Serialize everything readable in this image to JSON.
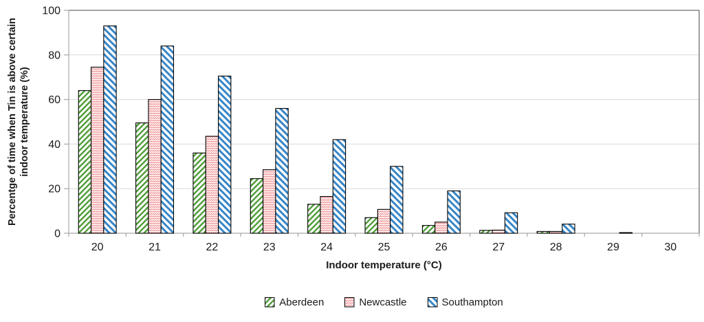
{
  "chart_data": {
    "type": "bar",
    "title": "",
    "xlabel": "Indoor temperature (°C)",
    "ylabel_lines": [
      "Percentge of time when Tin is above certain",
      "indoor temperature (%)"
    ],
    "ylabel": "Percentge of time when Tin is above certain indoor temperature (%)",
    "categories": [
      "20",
      "21",
      "22",
      "23",
      "24",
      "25",
      "26",
      "27",
      "28",
      "29",
      "30"
    ],
    "series": [
      {
        "name": "Aberdeen",
        "color": "#4d9b35",
        "pattern": "diagonal-stripe-up",
        "values": [
          64,
          49.5,
          36,
          24.5,
          13,
          7,
          3.5,
          1.3,
          0.8,
          0,
          0
        ]
      },
      {
        "name": "Newcastle",
        "color": "#ef8a8c",
        "pattern": "zigzag-wave",
        "values": [
          74.5,
          60,
          43.5,
          28.5,
          16.5,
          10.7,
          5,
          1.4,
          0.8,
          0,
          0
        ]
      },
      {
        "name": "Southampton",
        "color": "#3584c6",
        "pattern": "diagonal-stripe-down",
        "values": [
          93,
          84,
          70.5,
          56,
          42,
          30,
          19,
          9.2,
          4.1,
          0.3,
          0
        ]
      }
    ],
    "ylim": [
      0,
      100
    ],
    "ytick_step": 20,
    "yticks": [
      "0",
      "20",
      "40",
      "60",
      "80",
      "100"
    ],
    "grid": true,
    "legend_position": "bottom",
    "colors": {
      "gridline": "#d9d9d9",
      "plot_border": "#6b6b6b",
      "axis_line": "#a6a6a6",
      "bar_border": "#000000",
      "text": "#1a1a1a",
      "background": "#ffffff"
    }
  }
}
